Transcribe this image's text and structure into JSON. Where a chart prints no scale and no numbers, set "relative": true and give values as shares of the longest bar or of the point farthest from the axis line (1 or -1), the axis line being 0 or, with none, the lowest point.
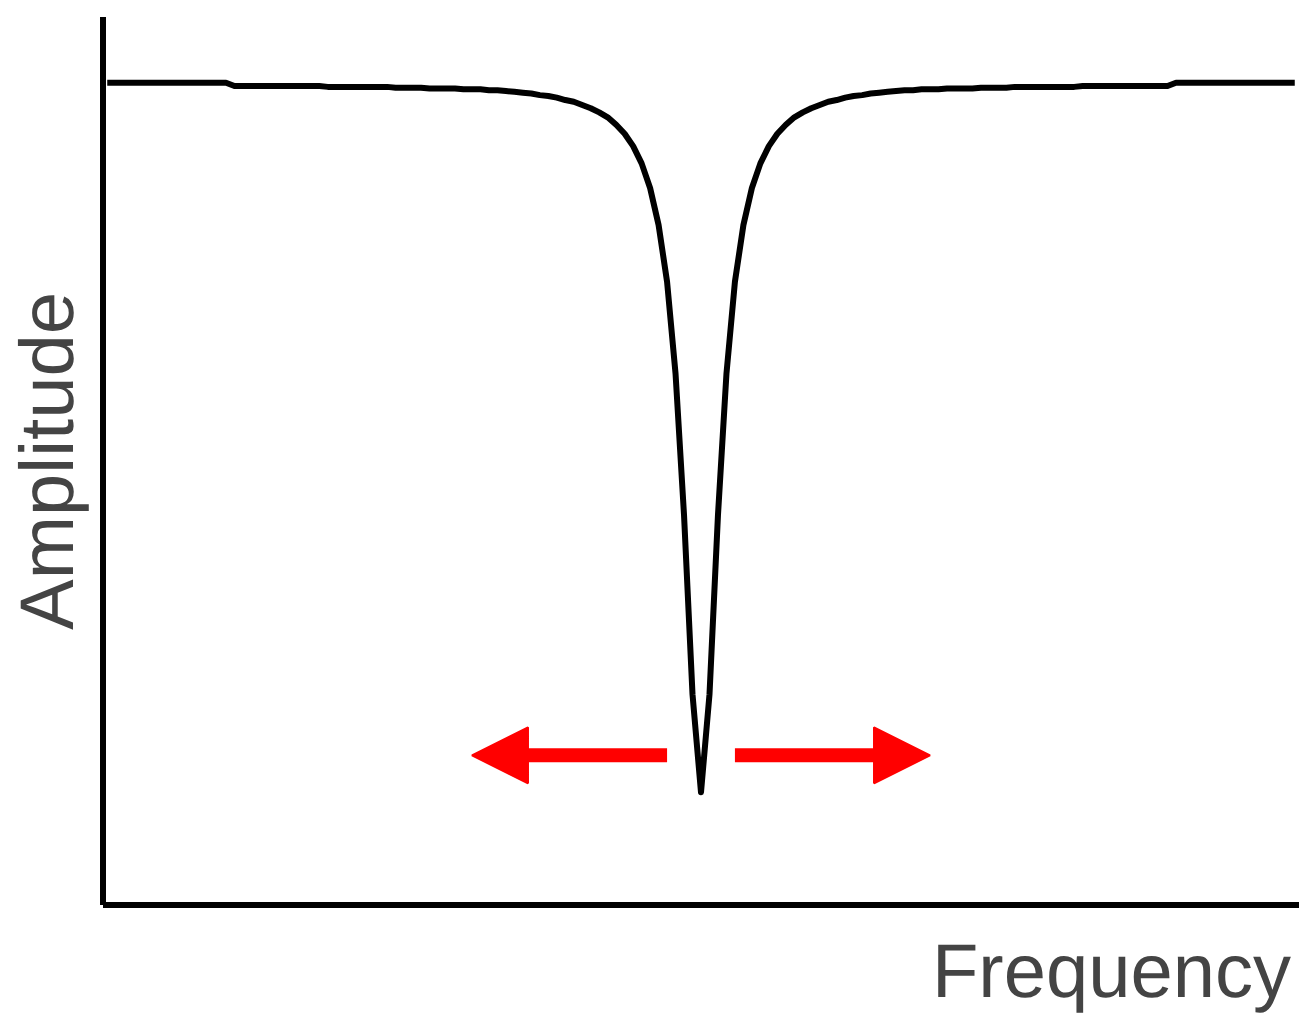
{
  "chart_data": {
    "type": "line",
    "relative": true,
    "xlabel": "Frequency",
    "ylabel": "Amplitude",
    "grid": false,
    "categories": [
      null,
      null,
      null,
      null,
      null,
      null,
      null,
      null,
      null,
      null,
      null,
      null,
      null,
      null,
      null,
      null,
      null,
      null,
      null,
      null,
      null,
      null,
      null,
      null,
      null,
      null,
      null,
      null,
      null,
      null,
      null,
      null,
      null,
      null,
      null,
      null,
      null,
      null,
      null,
      null,
      null,
      null,
      null,
      null,
      null,
      null,
      null,
      null,
      null,
      null,
      null,
      null,
      null,
      null,
      null,
      null,
      null,
      null,
      null,
      null,
      null,
      null,
      null,
      null,
      null,
      null,
      null,
      null,
      null,
      null,
      null,
      null,
      null,
      null,
      null,
      null,
      null,
      null,
      null,
      null,
      null,
      null,
      null,
      null,
      null,
      null,
      null,
      null,
      null,
      null,
      null,
      null,
      null,
      null,
      null,
      null,
      null,
      null,
      null,
      null,
      null,
      null,
      null,
      null,
      null,
      null,
      null,
      null,
      null,
      null,
      null,
      null,
      null,
      null,
      null,
      null,
      null,
      null,
      null,
      null,
      null,
      null,
      null,
      null,
      null,
      null,
      null,
      null,
      null,
      null,
      null,
      null,
      null,
      null,
      null,
      null,
      null,
      null,
      null,
      null,
      null
    ],
    "series": [
      {
        "color": "#000000",
        "values": [
          1,
          1,
          1,
          1,
          1,
          1,
          1,
          1,
          1,
          1,
          1,
          1,
          1,
          1,
          1,
          0.996,
          0.996,
          0.996,
          0.996,
          0.996,
          0.996,
          0.996,
          0.996,
          0.996,
          0.996,
          0.996,
          0.995,
          0.995,
          0.995,
          0.995,
          0.995,
          0.995,
          0.995,
          0.995,
          0.994,
          0.994,
          0.994,
          0.994,
          0.993,
          0.993,
          0.993,
          0.993,
          0.992,
          0.992,
          0.992,
          0.991,
          0.991,
          0.99,
          0.989,
          0.988,
          0.987,
          0.985,
          0.984,
          0.982,
          0.979,
          0.977,
          0.973,
          0.969,
          0.964,
          0.958,
          0.949,
          0.938,
          0.923,
          0.902,
          0.872,
          0.827,
          0.758,
          0.646,
          0.474,
          0.256,
          0.137,
          0.256,
          0.474,
          0.646,
          0.758,
          0.827,
          0.872,
          0.902,
          0.923,
          0.938,
          0.949,
          0.958,
          0.964,
          0.969,
          0.973,
          0.977,
          0.979,
          0.982,
          0.984,
          0.985,
          0.987,
          0.988,
          0.989,
          0.99,
          0.991,
          0.991,
          0.992,
          0.992,
          0.992,
          0.993,
          0.993,
          0.993,
          0.993,
          0.994,
          0.994,
          0.994,
          0.994,
          0.995,
          0.995,
          0.995,
          0.995,
          0.995,
          0.995,
          0.995,
          0.995,
          0.996,
          0.996,
          0.996,
          0.996,
          0.996,
          0.996,
          0.996,
          0.996,
          0.996,
          0.996,
          0.996,
          1,
          1,
          1,
          1,
          1,
          1,
          1,
          1,
          1,
          1,
          1,
          1,
          1,
          1,
          1
        ]
      }
    ]
  }
}
